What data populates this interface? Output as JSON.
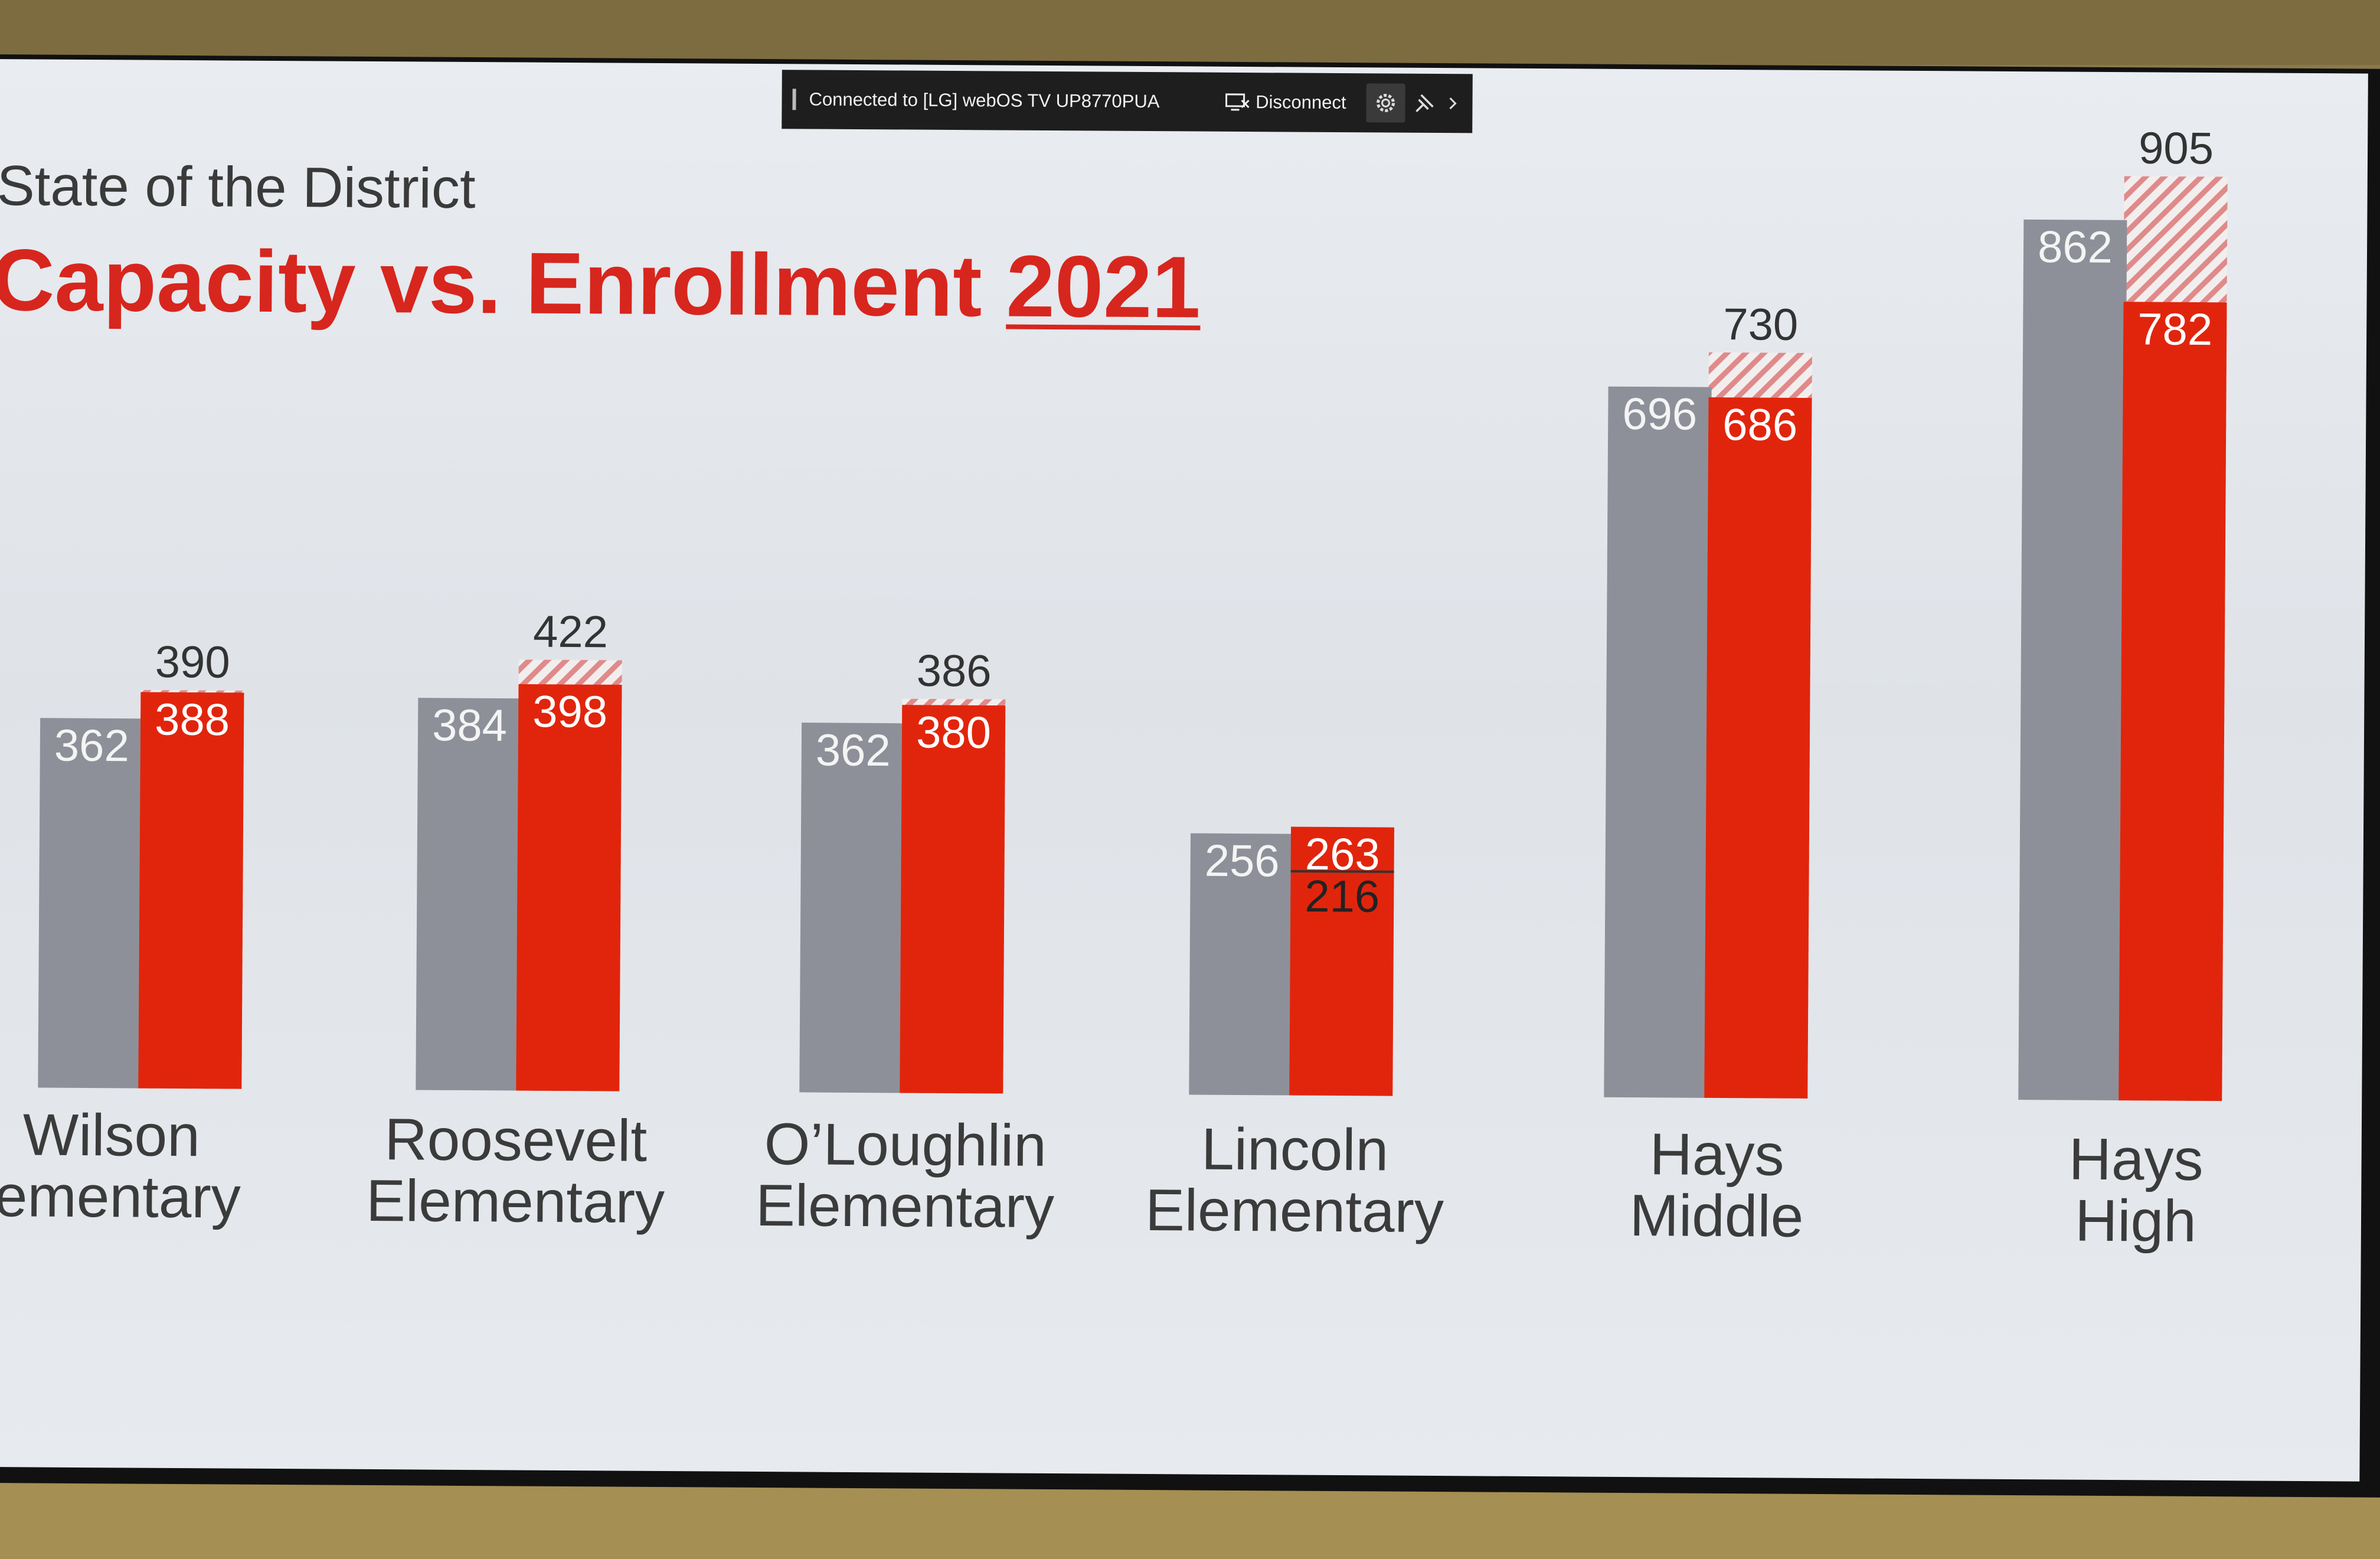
{
  "cast_bar": {
    "status_text": "Connected to [LG] webOS TV UP8770PUA",
    "disconnect_label": "Disconnect",
    "icons": [
      "cast-disconnect-icon",
      "gear-icon",
      "pin-icon",
      "chevron-right-icon"
    ]
  },
  "slide": {
    "subtitle": "State of the District",
    "title_main": "Capacity vs. Enrollment ",
    "title_year": "2021"
  },
  "colors": {
    "capacity_bar": "#8e9099",
    "enrollment_bar": "#e1250c",
    "projection_hatch": "#e08a8a",
    "title_red": "#d7261e"
  },
  "chart_data": {
    "type": "bar",
    "categories": [
      [
        "Wilson",
        "Elementary"
      ],
      [
        "Roosevelt",
        "Elementary"
      ],
      [
        "O’Loughlin",
        "Elementary"
      ],
      [
        "Lincoln",
        "Elementary"
      ],
      [
        "Hays",
        "Middle"
      ],
      [
        "Hays",
        "High"
      ]
    ],
    "category_texts": [
      {
        "line1": "Wilson",
        "line2": "lementary"
      },
      {
        "line1": "Roosevelt",
        "line2": "Elementary"
      },
      {
        "line1": "O’Loughlin",
        "line2": "Elementary"
      },
      {
        "line1": "Lincoln",
        "line2": "Elementary"
      },
      {
        "line1": "Hays",
        "line2": "Middle"
      },
      {
        "line1": "Hays",
        "line2": "High"
      }
    ],
    "series": [
      {
        "values": [
          362,
          384,
          362,
          256,
          696,
          862
        ]
      },
      {
        "values": [
          388,
          398,
          380,
          263,
          686,
          782
        ]
      },
      {
        "values": [
          390,
          422,
          386,
          null,
          730,
          905
        ]
      }
    ],
    "extra_labels": [
      null,
      null,
      null,
      216,
      null,
      null
    ],
    "ylim": [
      0,
      1000
    ],
    "grid": false,
    "legend": "none"
  }
}
